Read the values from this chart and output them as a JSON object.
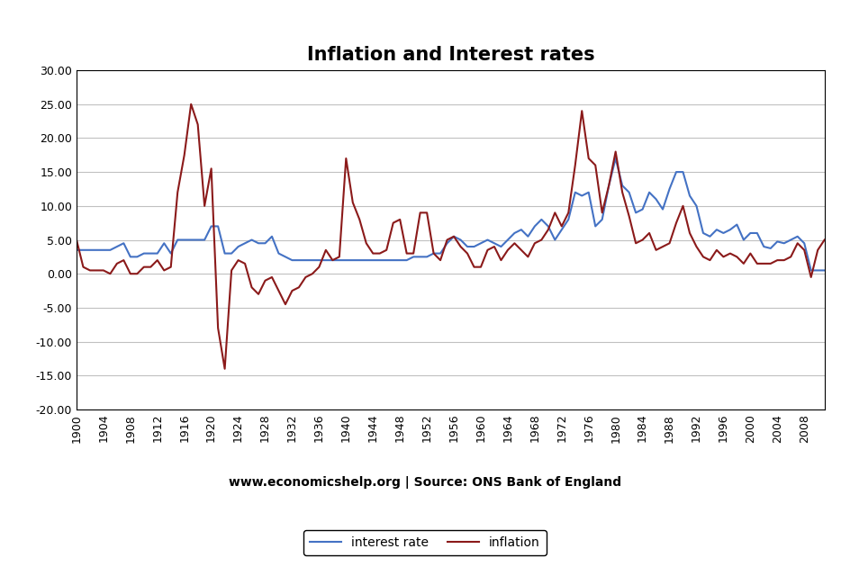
{
  "title": "Inflation and Interest rates",
  "source_text": "www.economicshelp.org | Source: ONS Bank of England",
  "interest_rate_color": "#4472C4",
  "inflation_color": "#8B1A1A",
  "background_color": "#FFFFFF",
  "grid_color": "#C0C0C0",
  "ylim": [
    -20,
    30
  ],
  "yticks": [
    -20,
    -15,
    -10,
    -5,
    0,
    5,
    10,
    15,
    20,
    25,
    30
  ],
  "legend_interest_label": "interest rate",
  "legend_inflation_label": "inflation",
  "years": [
    1900,
    1901,
    1902,
    1903,
    1904,
    1905,
    1906,
    1907,
    1908,
    1909,
    1910,
    1911,
    1912,
    1913,
    1914,
    1915,
    1916,
    1917,
    1918,
    1919,
    1920,
    1921,
    1922,
    1923,
    1924,
    1925,
    1926,
    1927,
    1928,
    1929,
    1930,
    1931,
    1932,
    1933,
    1934,
    1935,
    1936,
    1937,
    1938,
    1939,
    1940,
    1941,
    1942,
    1943,
    1944,
    1945,
    1946,
    1947,
    1948,
    1949,
    1950,
    1951,
    1952,
    1953,
    1954,
    1955,
    1956,
    1957,
    1958,
    1959,
    1960,
    1961,
    1962,
    1963,
    1964,
    1965,
    1966,
    1967,
    1968,
    1969,
    1970,
    1971,
    1972,
    1973,
    1974,
    1975,
    1976,
    1977,
    1978,
    1979,
    1980,
    1981,
    1982,
    1983,
    1984,
    1985,
    1986,
    1987,
    1988,
    1989,
    1990,
    1991,
    1992,
    1993,
    1994,
    1995,
    1996,
    1997,
    1998,
    1999,
    2000,
    2001,
    2002,
    2003,
    2004,
    2005,
    2006,
    2007,
    2008,
    2009,
    2010,
    2011
  ],
  "interest_rate": [
    3.5,
    3.5,
    3.5,
    3.5,
    3.5,
    3.5,
    4.0,
    4.5,
    2.5,
    2.5,
    3.0,
    3.0,
    3.0,
    4.5,
    3.0,
    5.0,
    5.0,
    5.0,
    5.0,
    5.0,
    7.0,
    7.0,
    3.0,
    3.0,
    4.0,
    4.5,
    5.0,
    4.5,
    4.5,
    5.5,
    3.0,
    2.5,
    2.0,
    2.0,
    2.0,
    2.0,
    2.0,
    2.0,
    2.0,
    2.0,
    2.0,
    2.0,
    2.0,
    2.0,
    2.0,
    2.0,
    2.0,
    2.0,
    2.0,
    2.0,
    2.5,
    2.5,
    2.5,
    3.0,
    3.0,
    4.5,
    5.5,
    5.0,
    4.0,
    4.0,
    4.5,
    5.0,
    4.5,
    4.0,
    5.0,
    6.0,
    6.5,
    5.5,
    7.0,
    8.0,
    7.0,
    5.0,
    6.5,
    8.0,
    12.0,
    11.5,
    12.0,
    7.0,
    8.0,
    13.0,
    17.0,
    13.0,
    12.0,
    9.0,
    9.5,
    12.0,
    11.0,
    9.5,
    12.5,
    15.0,
    15.0,
    11.5,
    10.0,
    6.0,
    5.5,
    6.5,
    6.0,
    6.5,
    7.25,
    5.0,
    6.0,
    6.0,
    4.0,
    3.75,
    4.75,
    4.5,
    5.0,
    5.5,
    4.5,
    0.5,
    0.5,
    0.5
  ],
  "inflation": [
    5.0,
    1.0,
    0.5,
    0.5,
    0.5,
    0.0,
    1.5,
    2.0,
    0.0,
    0.0,
    1.0,
    1.0,
    2.0,
    0.5,
    1.0,
    12.0,
    17.5,
    25.0,
    22.0,
    10.0,
    15.5,
    -8.0,
    -14.0,
    0.5,
    2.0,
    1.5,
    -2.0,
    -3.0,
    -1.0,
    -0.5,
    -2.5,
    -4.5,
    -2.5,
    -2.0,
    -0.5,
    0.0,
    1.0,
    3.5,
    2.0,
    2.5,
    17.0,
    10.5,
    8.0,
    4.5,
    3.0,
    3.0,
    3.5,
    7.5,
    8.0,
    3.0,
    3.0,
    9.0,
    9.0,
    3.0,
    2.0,
    5.0,
    5.5,
    4.0,
    3.0,
    1.0,
    1.0,
    3.5,
    4.0,
    2.0,
    3.5,
    4.5,
    3.5,
    2.5,
    4.5,
    5.0,
    6.5,
    9.0,
    7.0,
    9.0,
    16.0,
    24.0,
    17.0,
    16.0,
    9.0,
    13.0,
    18.0,
    12.0,
    8.5,
    4.5,
    5.0,
    6.0,
    3.5,
    4.0,
    4.5,
    7.5,
    10.0,
    6.0,
    4.0,
    2.5,
    2.0,
    3.5,
    2.5,
    3.0,
    2.5,
    1.5,
    3.0,
    1.5,
    1.5,
    1.5,
    2.0,
    2.0,
    2.5,
    4.5,
    3.5,
    -0.5,
    3.5,
    5.0
  ]
}
